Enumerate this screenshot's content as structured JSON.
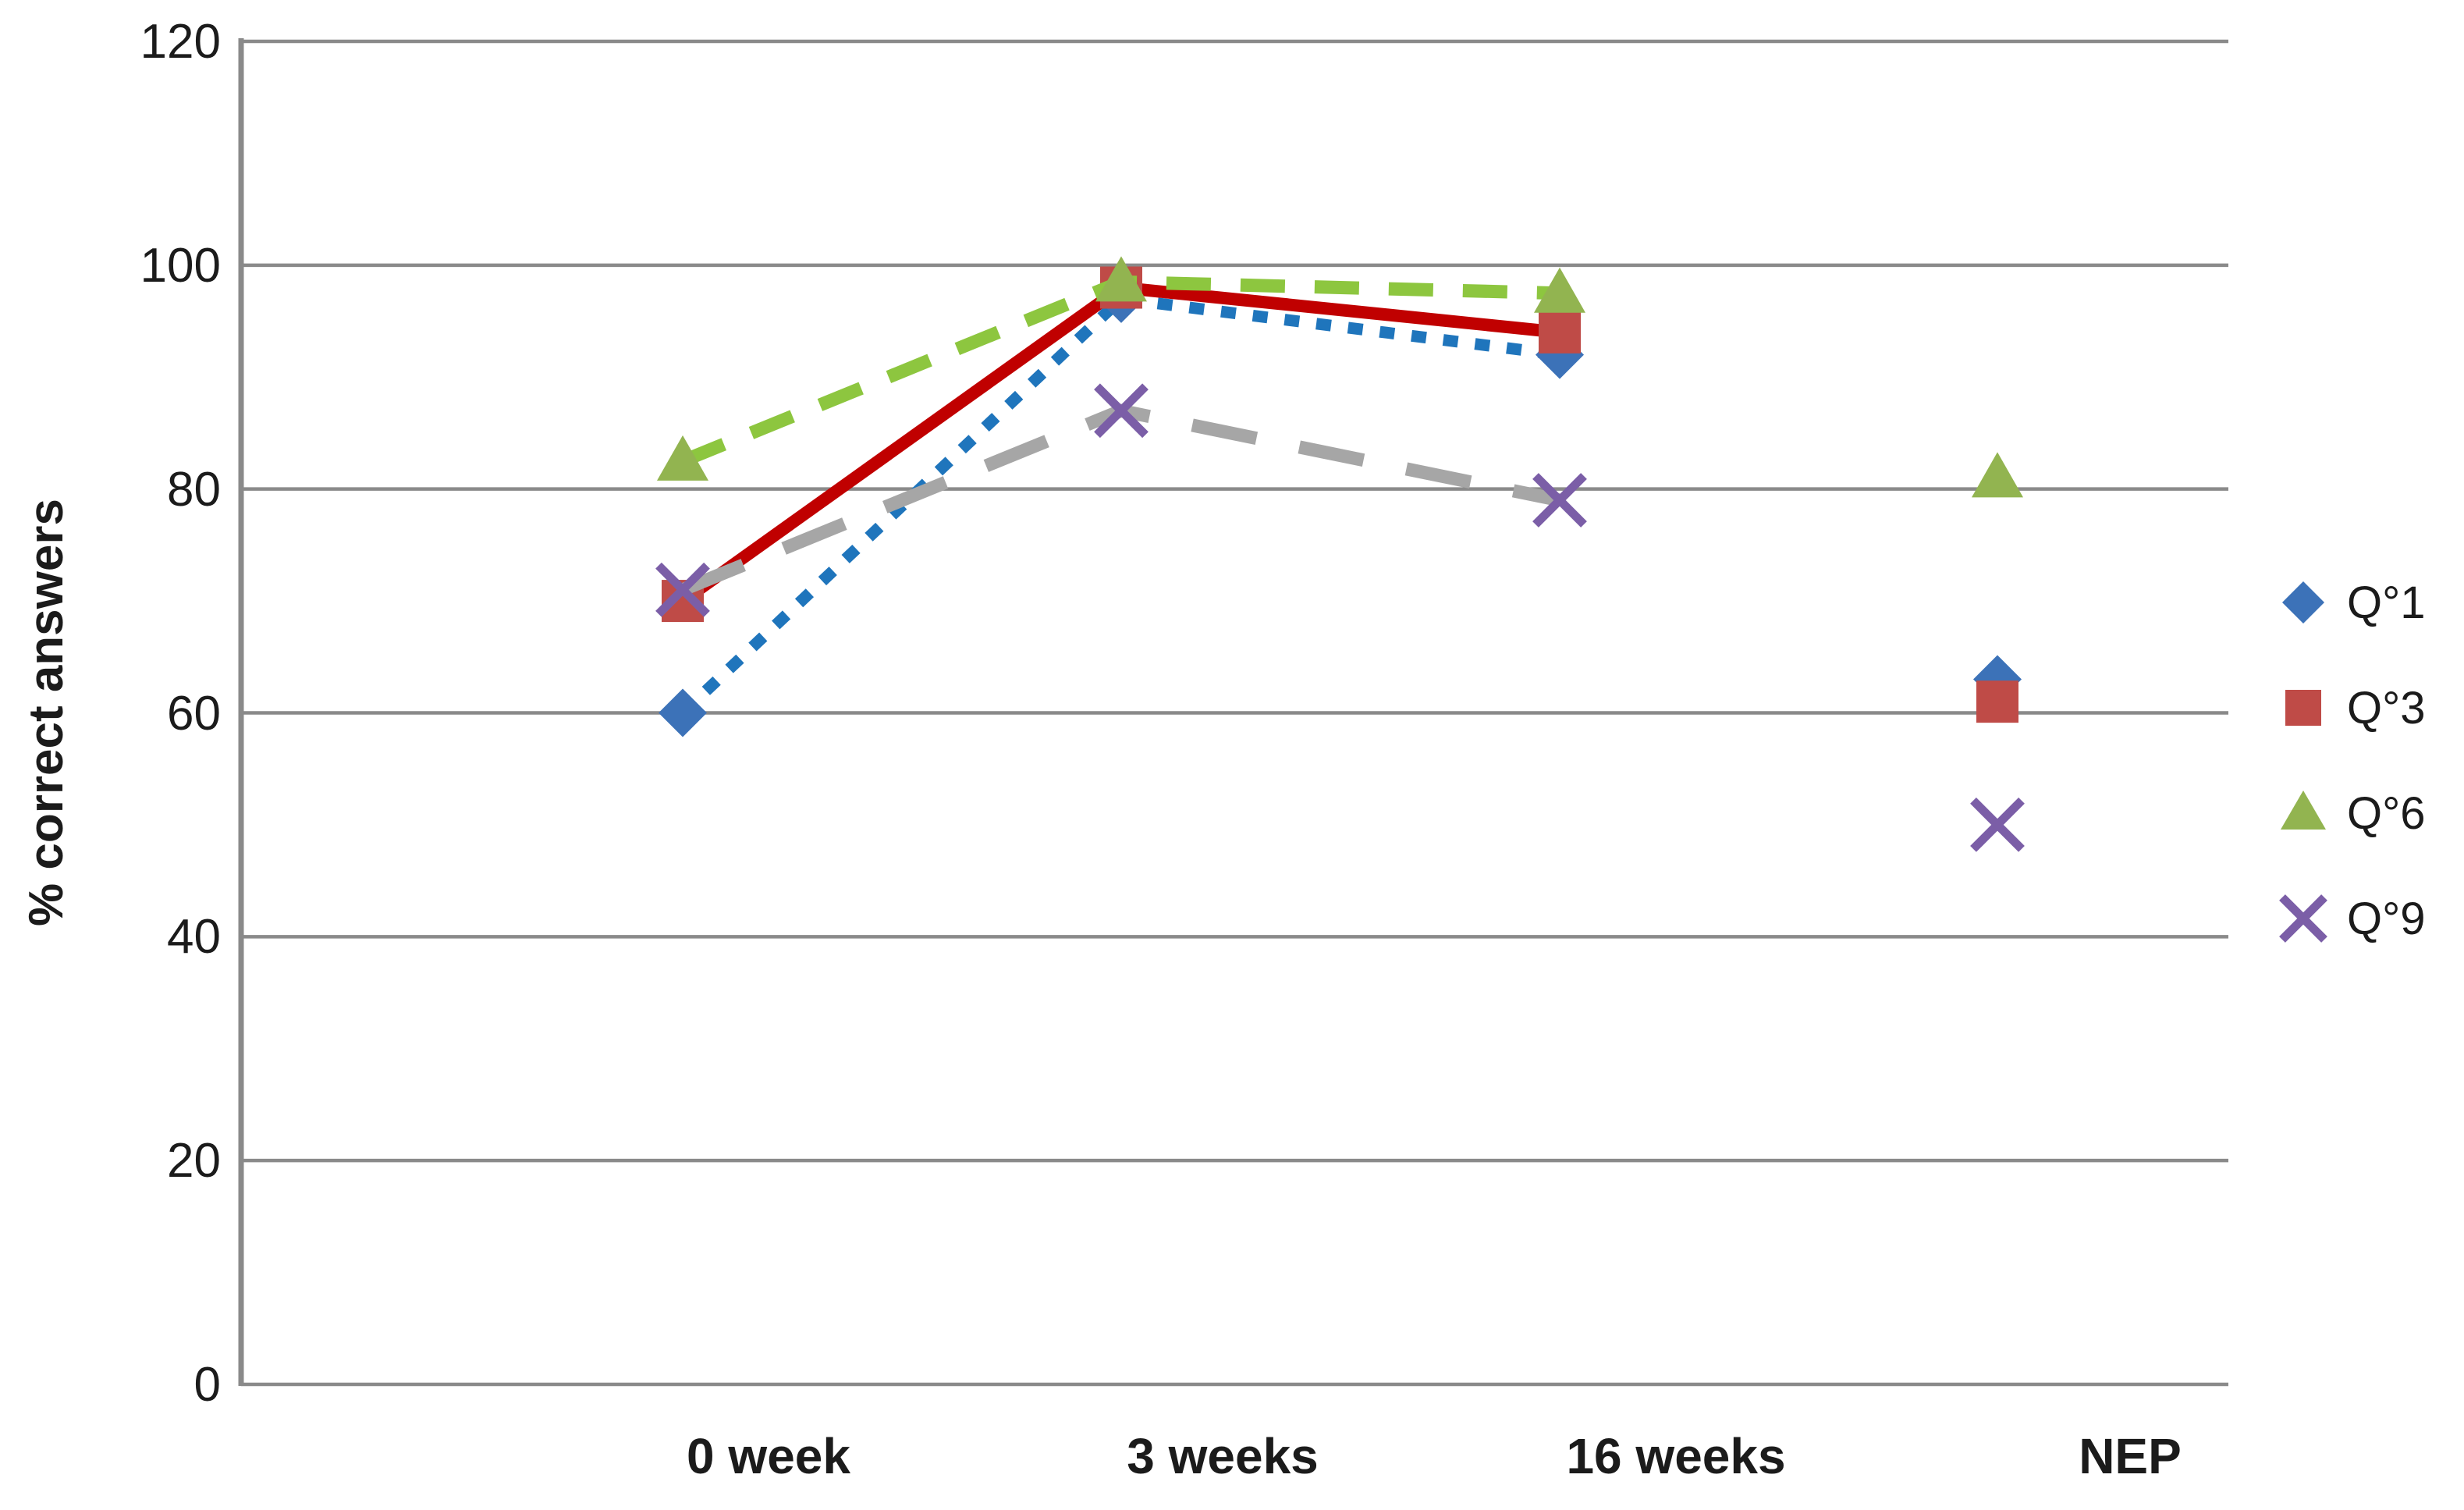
{
  "chart_data": {
    "type": "line",
    "title": "",
    "ylabel": "% correct answers",
    "xlabel": "",
    "categories": [
      "0 week",
      "3 weeks",
      "16 weeks",
      "NEP"
    ],
    "yticks": [
      120,
      100,
      80,
      60,
      40,
      20,
      0
    ],
    "ylim": [
      0,
      120
    ],
    "grid": "horizontal-only",
    "legend_position": "right-middle",
    "lines_connect_only_first_three_categories": true,
    "series": [
      {
        "name": "Q°1",
        "marker": "diamond",
        "marker_color": "#3C72B8",
        "line_color": "#1F75BC",
        "line_style": "dotted",
        "values": [
          60,
          97,
          92,
          63
        ]
      },
      {
        "name": "Q°3",
        "marker": "square",
        "marker_color": "#BF4B47",
        "line_color": "#C00000",
        "line_style": "solid",
        "values": [
          70,
          98,
          94,
          61
        ]
      },
      {
        "name": "Q°6",
        "marker": "triangle",
        "marker_color": "#92B450",
        "line_color": "#8DC63F",
        "line_style": "dashed",
        "values": [
          82.5,
          98.5,
          97.5,
          81
        ]
      },
      {
        "name": "Q°9",
        "marker": "x",
        "marker_color": "#7B5EA7",
        "line_color": "#A6A6A6",
        "line_style": "long-dash",
        "values": [
          71,
          87,
          79,
          50
        ]
      }
    ],
    "grid_color": "#8A8A8A",
    "text_color": "#1b1b1b",
    "background_color": "#ffffff"
  }
}
